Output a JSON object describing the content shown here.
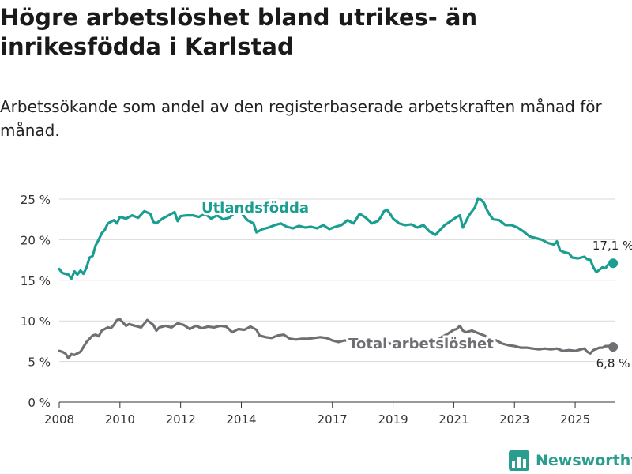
{
  "title": "Högre arbetslöshet bland utrikes- än inrikesfödda i Karlstad",
  "subtitle": "Arbetssökande som andel av den registerbaserade arbetskraften månad för månad.",
  "brand": {
    "name": "Newsworthy",
    "color": "#2a9d8f"
  },
  "chart_data": {
    "type": "line",
    "title": "Högre arbetslöshet bland utrikes- än inrikesfödda i Karlstad",
    "xlabel": "",
    "ylabel": "",
    "xlim": [
      2008,
      2026.3
    ],
    "ylim": [
      0,
      25
    ],
    "x_ticks": [
      2008,
      2010,
      2012,
      2014,
      2017,
      2019,
      2021,
      2023,
      2025
    ],
    "y_ticks": [
      0,
      5,
      10,
      15,
      20,
      25
    ],
    "y_tick_labels": [
      "0 %",
      "5 %",
      "10 %",
      "15 %",
      "20 %",
      "25 %"
    ],
    "grid": "horizontal",
    "legend": "inline labels",
    "series": [
      {
        "name": "Utlandsfödda",
        "color": "#1a9e90",
        "end_label": "17,1 %",
        "points": [
          [
            2008.0,
            16.4
          ],
          [
            2008.1,
            15.9
          ],
          [
            2008.2,
            15.8
          ],
          [
            2008.3,
            15.7
          ],
          [
            2008.4,
            15.2
          ],
          [
            2008.5,
            16.1
          ],
          [
            2008.6,
            15.7
          ],
          [
            2008.7,
            16.2
          ],
          [
            2008.8,
            15.8
          ],
          [
            2008.9,
            16.6
          ],
          [
            2009.0,
            17.8
          ],
          [
            2009.1,
            18.0
          ],
          [
            2009.2,
            19.3
          ],
          [
            2009.3,
            20.0
          ],
          [
            2009.4,
            20.8
          ],
          [
            2009.5,
            21.2
          ],
          [
            2009.6,
            22.0
          ],
          [
            2009.7,
            22.2
          ],
          [
            2009.8,
            22.4
          ],
          [
            2009.9,
            22.0
          ],
          [
            2010.0,
            22.8
          ],
          [
            2010.2,
            22.6
          ],
          [
            2010.4,
            23.0
          ],
          [
            2010.6,
            22.7
          ],
          [
            2010.8,
            23.5
          ],
          [
            2011.0,
            23.2
          ],
          [
            2011.1,
            22.2
          ],
          [
            2011.2,
            22.0
          ],
          [
            2011.4,
            22.6
          ],
          [
            2011.6,
            23.0
          ],
          [
            2011.8,
            23.4
          ],
          [
            2011.9,
            22.3
          ],
          [
            2012.0,
            22.9
          ],
          [
            2012.2,
            23.0
          ],
          [
            2012.4,
            23.0
          ],
          [
            2012.6,
            22.8
          ],
          [
            2012.8,
            23.2
          ],
          [
            2013.0,
            22.6
          ],
          [
            2013.2,
            23.0
          ],
          [
            2013.4,
            22.5
          ],
          [
            2013.6,
            22.7
          ],
          [
            2013.8,
            23.4
          ],
          [
            2014.0,
            23.3
          ],
          [
            2014.2,
            22.4
          ],
          [
            2014.4,
            22.0
          ],
          [
            2014.5,
            20.9
          ],
          [
            2014.7,
            21.3
          ],
          [
            2014.9,
            21.5
          ],
          [
            2015.1,
            21.8
          ],
          [
            2015.3,
            22.0
          ],
          [
            2015.5,
            21.6
          ],
          [
            2015.7,
            21.4
          ],
          [
            2015.9,
            21.7
          ],
          [
            2016.1,
            21.5
          ],
          [
            2016.3,
            21.6
          ],
          [
            2016.5,
            21.4
          ],
          [
            2016.7,
            21.8
          ],
          [
            2016.9,
            21.3
          ],
          [
            2017.1,
            21.6
          ],
          [
            2017.3,
            21.8
          ],
          [
            2017.5,
            22.4
          ],
          [
            2017.7,
            22.0
          ],
          [
            2017.9,
            23.2
          ],
          [
            2018.1,
            22.7
          ],
          [
            2018.3,
            22.0
          ],
          [
            2018.5,
            22.3
          ],
          [
            2018.6,
            22.8
          ],
          [
            2018.7,
            23.5
          ],
          [
            2018.8,
            23.7
          ],
          [
            2018.9,
            23.2
          ],
          [
            2019.0,
            22.6
          ],
          [
            2019.2,
            22.0
          ],
          [
            2019.4,
            21.8
          ],
          [
            2019.6,
            21.9
          ],
          [
            2019.8,
            21.5
          ],
          [
            2020.0,
            21.8
          ],
          [
            2020.2,
            21.0
          ],
          [
            2020.4,
            20.6
          ],
          [
            2020.5,
            21.0
          ],
          [
            2020.7,
            21.8
          ],
          [
            2020.9,
            22.3
          ],
          [
            2021.1,
            22.8
          ],
          [
            2021.2,
            23.0
          ],
          [
            2021.3,
            21.5
          ],
          [
            2021.5,
            23.0
          ],
          [
            2021.7,
            24.0
          ],
          [
            2021.8,
            25.1
          ],
          [
            2021.9,
            24.9
          ],
          [
            2022.0,
            24.5
          ],
          [
            2022.1,
            23.6
          ],
          [
            2022.2,
            23.0
          ],
          [
            2022.3,
            22.5
          ],
          [
            2022.5,
            22.4
          ],
          [
            2022.7,
            21.8
          ],
          [
            2022.9,
            21.8
          ],
          [
            2023.1,
            21.5
          ],
          [
            2023.3,
            21.0
          ],
          [
            2023.5,
            20.4
          ],
          [
            2023.7,
            20.2
          ],
          [
            2023.9,
            20.0
          ],
          [
            2024.1,
            19.6
          ],
          [
            2024.3,
            19.4
          ],
          [
            2024.4,
            19.8
          ],
          [
            2024.5,
            18.7
          ],
          [
            2024.6,
            18.5
          ],
          [
            2024.8,
            18.3
          ],
          [
            2024.9,
            17.8
          ],
          [
            2025.1,
            17.7
          ],
          [
            2025.3,
            17.9
          ],
          [
            2025.4,
            17.6
          ],
          [
            2025.5,
            17.5
          ],
          [
            2025.6,
            16.6
          ],
          [
            2025.7,
            16.0
          ],
          [
            2025.8,
            16.3
          ],
          [
            2025.9,
            16.6
          ],
          [
            2026.0,
            16.5
          ],
          [
            2026.1,
            17.0
          ],
          [
            2026.25,
            17.1
          ]
        ]
      },
      {
        "name": "Total arbetslöshet",
        "color": "#6e6e73",
        "end_label": "6,8 %",
        "points": [
          [
            2008.0,
            6.3
          ],
          [
            2008.1,
            6.2
          ],
          [
            2008.2,
            6.0
          ],
          [
            2008.3,
            5.4
          ],
          [
            2008.4,
            5.9
          ],
          [
            2008.5,
            5.8
          ],
          [
            2008.6,
            6.0
          ],
          [
            2008.7,
            6.2
          ],
          [
            2008.8,
            6.8
          ],
          [
            2008.9,
            7.4
          ],
          [
            2009.0,
            7.8
          ],
          [
            2009.1,
            8.2
          ],
          [
            2009.2,
            8.3
          ],
          [
            2009.3,
            8.1
          ],
          [
            2009.4,
            8.8
          ],
          [
            2009.5,
            9.0
          ],
          [
            2009.6,
            9.2
          ],
          [
            2009.7,
            9.1
          ],
          [
            2009.8,
            9.5
          ],
          [
            2009.9,
            10.1
          ],
          [
            2010.0,
            10.2
          ],
          [
            2010.1,
            9.8
          ],
          [
            2010.2,
            9.4
          ],
          [
            2010.3,
            9.6
          ],
          [
            2010.5,
            9.4
          ],
          [
            2010.7,
            9.2
          ],
          [
            2010.9,
            10.1
          ],
          [
            2011.1,
            9.5
          ],
          [
            2011.2,
            8.8
          ],
          [
            2011.3,
            9.2
          ],
          [
            2011.5,
            9.4
          ],
          [
            2011.7,
            9.2
          ],
          [
            2011.9,
            9.7
          ],
          [
            2012.1,
            9.5
          ],
          [
            2012.3,
            9.0
          ],
          [
            2012.5,
            9.4
          ],
          [
            2012.7,
            9.1
          ],
          [
            2012.9,
            9.3
          ],
          [
            2013.1,
            9.2
          ],
          [
            2013.3,
            9.4
          ],
          [
            2013.5,
            9.3
          ],
          [
            2013.7,
            8.6
          ],
          [
            2013.9,
            9.0
          ],
          [
            2014.1,
            8.9
          ],
          [
            2014.3,
            9.3
          ],
          [
            2014.5,
            8.9
          ],
          [
            2014.6,
            8.2
          ],
          [
            2014.8,
            8.0
          ],
          [
            2015.0,
            7.9
          ],
          [
            2015.2,
            8.2
          ],
          [
            2015.4,
            8.3
          ],
          [
            2015.6,
            7.8
          ],
          [
            2015.8,
            7.7
          ],
          [
            2016.0,
            7.8
          ],
          [
            2016.2,
            7.8
          ],
          [
            2016.4,
            7.9
          ],
          [
            2016.6,
            8.0
          ],
          [
            2016.8,
            7.9
          ],
          [
            2017.0,
            7.6
          ],
          [
            2017.2,
            7.4
          ],
          [
            2017.4,
            7.6
          ],
          [
            2017.6,
            7.5
          ],
          [
            2017.8,
            7.8
          ],
          [
            2018.0,
            7.5
          ],
          [
            2018.2,
            7.3
          ],
          [
            2018.4,
            7.2
          ],
          [
            2018.6,
            7.6
          ],
          [
            2018.8,
            7.4
          ],
          [
            2019.0,
            7.0
          ],
          [
            2019.2,
            7.2
          ],
          [
            2019.4,
            7.1
          ],
          [
            2019.6,
            7.0
          ],
          [
            2019.8,
            6.8
          ],
          [
            2020.0,
            6.9
          ],
          [
            2020.2,
            7.2
          ],
          [
            2020.4,
            7.5
          ],
          [
            2020.6,
            8.0
          ],
          [
            2020.8,
            8.4
          ],
          [
            2021.0,
            8.9
          ],
          [
            2021.1,
            9.0
          ],
          [
            2021.2,
            9.4
          ],
          [
            2021.3,
            8.8
          ],
          [
            2021.4,
            8.6
          ],
          [
            2021.6,
            8.8
          ],
          [
            2021.8,
            8.5
          ],
          [
            2022.0,
            8.2
          ],
          [
            2022.2,
            7.8
          ],
          [
            2022.4,
            7.6
          ],
          [
            2022.6,
            7.2
          ],
          [
            2022.8,
            7.0
          ],
          [
            2023.0,
            6.9
          ],
          [
            2023.2,
            6.7
          ],
          [
            2023.4,
            6.7
          ],
          [
            2023.6,
            6.6
          ],
          [
            2023.8,
            6.5
          ],
          [
            2024.0,
            6.6
          ],
          [
            2024.2,
            6.5
          ],
          [
            2024.4,
            6.6
          ],
          [
            2024.6,
            6.3
          ],
          [
            2024.8,
            6.4
          ],
          [
            2025.0,
            6.3
          ],
          [
            2025.2,
            6.5
          ],
          [
            2025.3,
            6.6
          ],
          [
            2025.4,
            6.2
          ],
          [
            2025.5,
            6.0
          ],
          [
            2025.6,
            6.4
          ],
          [
            2025.8,
            6.7
          ],
          [
            2025.9,
            6.7
          ],
          [
            2026.0,
            6.9
          ],
          [
            2026.1,
            6.9
          ],
          [
            2026.25,
            6.8
          ]
        ]
      }
    ]
  }
}
